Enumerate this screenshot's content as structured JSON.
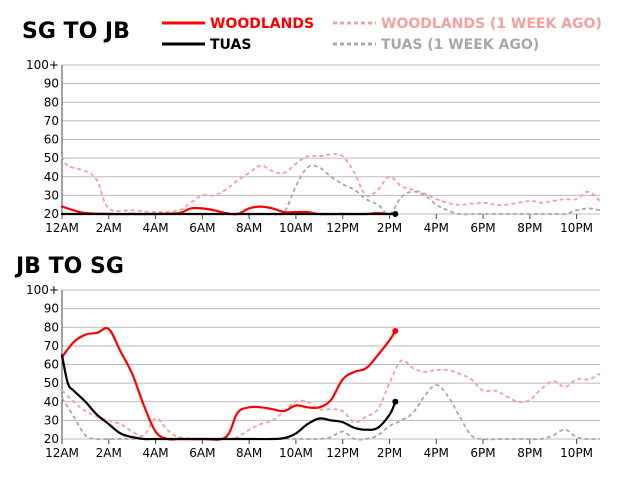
{
  "colors": {
    "woodlands": "#ff0000",
    "woodlands_week_ago": "#f4a0a0",
    "tuas": "#000000",
    "tuas_week_ago": "#a8a8a8",
    "grid": "#bbbbbb"
  },
  "legend": [
    {
      "label": "WOODLANDS",
      "style": "solid",
      "color": "#ff0000"
    },
    {
      "label": "WOODLANDS (1 WEEK AGO)",
      "style": "dashed",
      "color": "#f4a0a0"
    },
    {
      "label": "TUAS",
      "style": "solid",
      "color": "#000000"
    },
    {
      "label": "TUAS (1 WEEK AGO)",
      "style": "dashed",
      "color": "#a8a8a8"
    }
  ],
  "chart_data": [
    {
      "type": "line",
      "title": "SG TO JB",
      "xlabel": "",
      "ylabel": "",
      "xlim": [
        0,
        23
      ],
      "ylim": [
        20,
        100
      ],
      "x_ticks": [
        0,
        2,
        4,
        6,
        8,
        10,
        12,
        14,
        16,
        18,
        20,
        22
      ],
      "x_tick_labels": [
        "12AM",
        "2AM",
        "4AM",
        "6AM",
        "8AM",
        "10AM",
        "12PM",
        "2PM",
        "4PM",
        "6PM",
        "8PM",
        "10PM"
      ],
      "y_ticks": [
        20,
        30,
        40,
        50,
        60,
        70,
        80,
        90,
        100
      ],
      "y_tick_labels": [
        "20",
        "30",
        "40",
        "50",
        "60",
        "70",
        "80",
        "90",
        "100+"
      ],
      "grid": true,
      "series": [
        {
          "name": "WOODLANDS (1 WEEK AGO)",
          "style": "dashed",
          "color": "#f4a0a0",
          "x": [
            0,
            0.25,
            1,
            1.5,
            2,
            3,
            4,
            5,
            5.5,
            6,
            6.5,
            7,
            7.5,
            8,
            8.5,
            9,
            9.5,
            10,
            10.5,
            11,
            11.5,
            12,
            12.5,
            13,
            13.5,
            14,
            14.5,
            15,
            15.5,
            16,
            16.5,
            17,
            18,
            18.5,
            19,
            20,
            20.5,
            21,
            21.5,
            22,
            22.5,
            23
          ],
          "y": [
            51,
            46,
            43,
            38,
            23,
            22,
            21,
            22,
            26,
            30,
            30,
            33,
            38,
            42,
            46,
            43,
            42,
            47,
            51,
            51,
            52,
            51,
            42,
            30,
            33,
            40,
            35,
            33,
            31,
            28,
            26,
            25,
            26,
            25,
            25,
            27,
            26,
            27,
            28,
            28,
            32,
            27
          ]
        },
        {
          "name": "WOODLANDS",
          "style": "solid",
          "color": "#ff0000",
          "x": [
            0,
            0.5,
            1,
            2,
            3,
            4,
            5,
            5.5,
            6,
            6.5,
            7,
            7.5,
            8,
            8.5,
            9,
            9.5,
            10,
            10.5,
            11,
            12,
            13,
            13.5,
            14
          ],
          "y": [
            24,
            22,
            20.5,
            20,
            20,
            20,
            20.5,
            23,
            23,
            22,
            20.5,
            20,
            23,
            24,
            23,
            21,
            21,
            21,
            20,
            20,
            20,
            20.5,
            20
          ]
        },
        {
          "name": "TUAS (1 WEEK AGO)",
          "style": "dashed",
          "color": "#a8a8a8",
          "x": [
            9,
            9.5,
            10,
            10.5,
            11,
            11.5,
            12,
            12.5,
            13,
            13.5,
            14,
            14.5,
            15,
            15.5,
            16,
            16.5,
            17,
            18,
            19,
            20,
            21,
            21.5,
            22,
            22.5,
            23
          ],
          "y": [
            20,
            21,
            35,
            45,
            45,
            40,
            36,
            33,
            28,
            25,
            20,
            29,
            32,
            30,
            25,
            22,
            20,
            20,
            20,
            20,
            20,
            20,
            22,
            23,
            22
          ]
        },
        {
          "name": "TUAS",
          "style": "solid",
          "color": "#000000",
          "x": [
            0,
            2,
            4,
            6,
            8,
            10,
            12,
            14,
            14.25
          ],
          "y": [
            20,
            20,
            20,
            20,
            20,
            20,
            20,
            20,
            20
          ],
          "endpoint": true
        }
      ]
    },
    {
      "type": "line",
      "title": "JB TO SG",
      "xlabel": "",
      "ylabel": "",
      "xlim": [
        0,
        23
      ],
      "ylim": [
        20,
        100
      ],
      "x_ticks": [
        0,
        2,
        4,
        6,
        8,
        10,
        12,
        14,
        16,
        18,
        20,
        22
      ],
      "x_tick_labels": [
        "12AM",
        "2AM",
        "4AM",
        "6AM",
        "8AM",
        "10AM",
        "12PM",
        "2PM",
        "4PM",
        "6PM",
        "8PM",
        "10PM"
      ],
      "y_ticks": [
        20,
        30,
        40,
        50,
        60,
        70,
        80,
        90,
        100
      ],
      "y_tick_labels": [
        "20",
        "30",
        "40",
        "50",
        "60",
        "70",
        "80",
        "90",
        "100+"
      ],
      "grid": true,
      "series": [
        {
          "name": "WOODLANDS (1 WEEK AGO)",
          "style": "dashed",
          "color": "#f4a0a0",
          "x": [
            0,
            0.5,
            1,
            1.5,
            2,
            2.5,
            3,
            3.5,
            4,
            4.5,
            5,
            6,
            7,
            7.5,
            8,
            8.5,
            9,
            9.5,
            10,
            10.5,
            11,
            11.5,
            12,
            12.5,
            13,
            13.5,
            14,
            14.5,
            15,
            15.5,
            16,
            16.5,
            17,
            17.5,
            18,
            18.5,
            19,
            19.5,
            20,
            20.5,
            21,
            21.5,
            22,
            22.5,
            23
          ],
          "y": [
            46,
            40,
            35,
            32,
            30,
            28,
            24,
            22,
            31,
            25,
            21,
            20,
            20,
            21,
            25,
            28,
            30,
            35,
            40,
            40,
            36,
            36,
            35,
            29,
            32,
            36,
            50,
            62,
            58,
            56,
            57,
            57,
            55,
            52,
            46,
            46,
            43,
            40,
            41,
            47,
            51,
            48,
            52,
            52,
            55
          ]
        },
        {
          "name": "WOODLANDS",
          "style": "solid",
          "color": "#ff0000",
          "x": [
            0,
            0.5,
            1,
            1.5,
            2,
            2.5,
            3,
            3.5,
            4,
            4.5,
            5,
            6,
            7,
            7.5,
            8,
            8.5,
            9,
            9.5,
            10,
            10.5,
            11,
            11.5,
            12,
            12.5,
            13,
            13.5,
            14,
            14.25
          ],
          "y": [
            64,
            72,
            76,
            77,
            79,
            67,
            55,
            38,
            24,
            20,
            20,
            20,
            21,
            34,
            37,
            37,
            36,
            35,
            38,
            37,
            37,
            41,
            52,
            56,
            58,
            65,
            73,
            78
          ],
          "endpoint": true
        },
        {
          "name": "TUAS (1 WEEK AGO)",
          "style": "dashed",
          "color": "#a8a8a8",
          "x": [
            0,
            0.5,
            1,
            1.5,
            2,
            2.5,
            3,
            4,
            5,
            6,
            7,
            8,
            9,
            10,
            10.5,
            11,
            11.5,
            12,
            12.5,
            13,
            13.5,
            14,
            14.5,
            15,
            15.5,
            16,
            16.5,
            17,
            17.5,
            18,
            19,
            20,
            20.5,
            21,
            21.5,
            22,
            22.5,
            23
          ],
          "y": [
            42,
            32,
            22,
            20,
            20,
            20,
            20,
            20,
            20,
            20,
            20,
            20,
            20,
            20,
            20,
            20,
            21,
            24,
            20,
            20,
            22,
            27,
            30,
            34,
            43,
            49,
            43,
            32,
            22,
            20,
            20,
            20,
            20,
            22,
            25,
            21,
            20,
            20
          ]
        },
        {
          "name": "TUAS",
          "style": "solid",
          "color": "#000000",
          "x": [
            0,
            0.25,
            0.5,
            1,
            1.5,
            2,
            2.5,
            3,
            3.5,
            4,
            5,
            6,
            7,
            8,
            9,
            9.5,
            10,
            10.5,
            11,
            11.5,
            12,
            12.5,
            13,
            13.5,
            14,
            14.25
          ],
          "y": [
            65,
            50,
            46,
            40,
            33,
            28,
            23,
            21,
            20,
            20,
            20,
            20,
            20,
            20,
            20,
            20.5,
            23,
            28,
            31,
            30,
            29,
            26,
            25,
            26,
            33,
            40
          ],
          "endpoint": true
        }
      ]
    }
  ]
}
